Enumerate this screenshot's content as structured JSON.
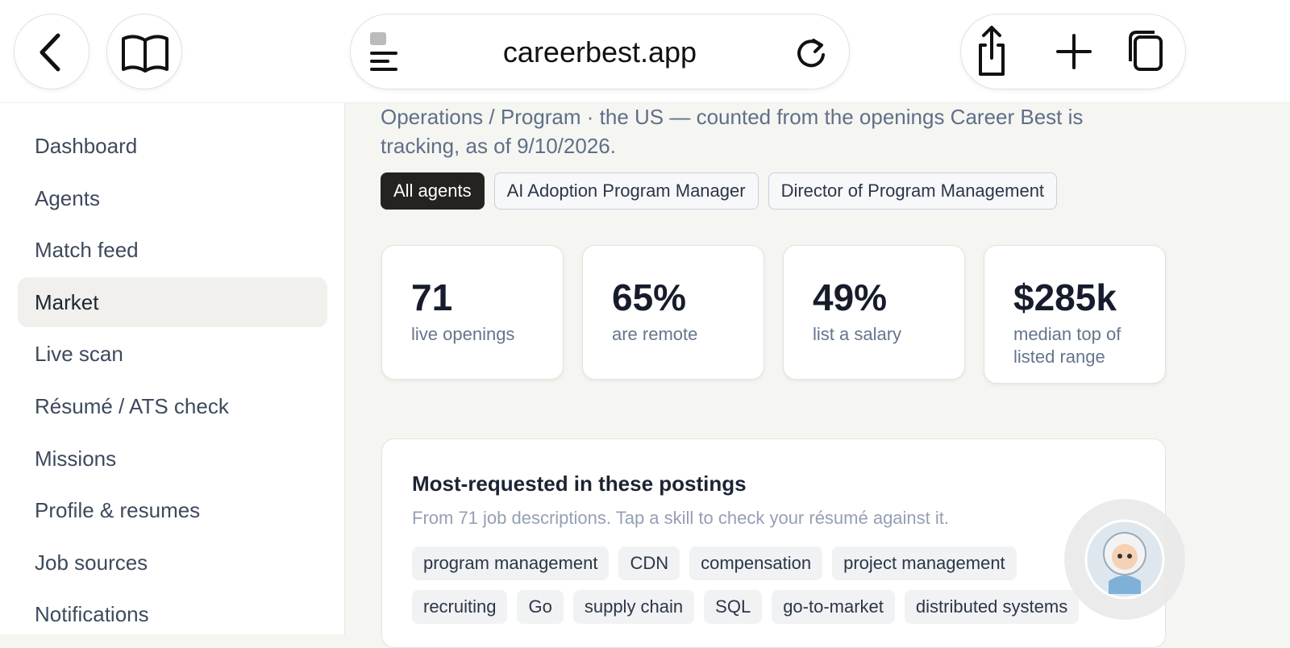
{
  "browser": {
    "url": "careerbest.app"
  },
  "sidebar": {
    "items": [
      "Dashboard",
      "Agents",
      "Match feed",
      "Market",
      "Live scan",
      "Résumé / ATS check",
      "Missions",
      "Profile & resumes",
      "Job sources",
      "Notifications"
    ],
    "active": "Market"
  },
  "main": {
    "subtitle": "Operations / Program · the US — counted from the openings Career Best is tracking, as of 9/10/2026.",
    "filters": [
      "All agents",
      "AI Adoption Program Manager",
      "Director of Program Management"
    ],
    "active_filter": "All agents",
    "stats": [
      {
        "value": "71",
        "label": "live openings"
      },
      {
        "value": "65%",
        "label": "are remote"
      },
      {
        "value": "49%",
        "label": "list a salary"
      },
      {
        "value": "$285k",
        "label": "median top of listed range"
      }
    ],
    "skills_card": {
      "title": "Most-requested in these postings",
      "subtitle": "From 71 job descriptions. Tap a skill to check your résumé against it.",
      "skills": [
        "program management",
        "CDN",
        "compensation",
        "project management",
        "recruiting",
        "Go",
        "supply chain",
        "SQL",
        "go-to-market",
        "distributed systems"
      ]
    }
  }
}
